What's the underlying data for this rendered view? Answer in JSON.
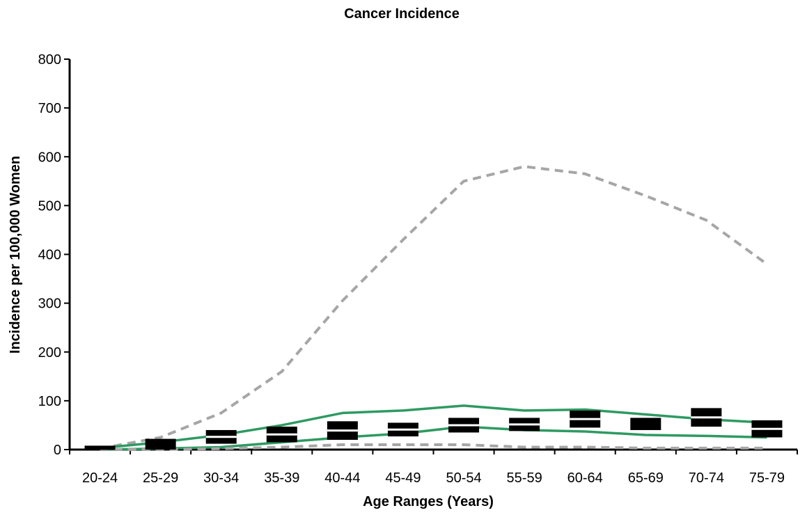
{
  "chart_data": {
    "type": "line",
    "title": "Cancer Incidence",
    "xlabel": "Age Ranges (Years)",
    "ylabel": "Incidence per 100,000 Women",
    "categories": [
      "20-24",
      "25-29",
      "30-34",
      "35-39",
      "40-44",
      "45-49",
      "50-54",
      "55-59",
      "60-64",
      "65-69",
      "70-74",
      "75-79"
    ],
    "ylim": [
      0,
      800
    ],
    "yticks": [
      0,
      100,
      200,
      300,
      400,
      500,
      600,
      700,
      800
    ],
    "grid": false,
    "legend": "none",
    "series": [
      {
        "style": "dashed",
        "color": "#a6a6a6",
        "values": [
          2,
          25,
          75,
          160,
          305,
          430,
          550,
          580,
          565,
          520,
          470,
          380
        ]
      },
      {
        "style": "solid",
        "color": "#2e9a62",
        "values": [
          3,
          15,
          30,
          50,
          75,
          80,
          90,
          80,
          82,
          72,
          62,
          55
        ]
      },
      {
        "style": "solid",
        "color": "#2e9a62",
        "values": [
          0,
          2,
          5,
          15,
          25,
          33,
          47,
          40,
          37,
          30,
          28,
          25
        ]
      },
      {
        "style": "dashed",
        "color": "#a6a6a6",
        "values": [
          0,
          0,
          2,
          5,
          10,
          10,
          10,
          5,
          5,
          3,
          3,
          3
        ]
      },
      {
        "style": "boxes",
        "color": "#000000",
        "low": [
          0,
          0,
          12,
          15,
          20,
          27,
          35,
          38,
          45,
          40,
          47,
          25
        ],
        "high": [
          8,
          22,
          40,
          47,
          58,
          55,
          65,
          65,
          80,
          65,
          85,
          60
        ]
      }
    ]
  }
}
